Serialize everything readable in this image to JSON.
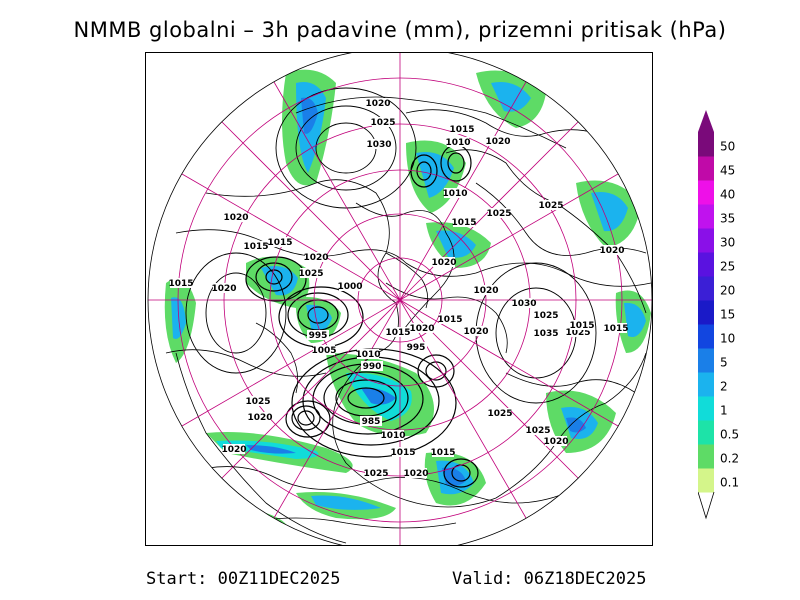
{
  "title": "NMMB globalni – 3h padavine (mm), prizemni pritisak (hPa)",
  "footer": {
    "start": "Start: 00Z11DEC2025",
    "valid": "Valid: 06Z18DEC2025"
  },
  "legend": {
    "levels": [
      {
        "label": "0.1",
        "color": "#d4f58a"
      },
      {
        "label": "0.2",
        "color": "#5edb66"
      },
      {
        "label": "0.5",
        "color": "#1de3a8"
      },
      {
        "label": "1",
        "color": "#11dcd9"
      },
      {
        "label": "2",
        "color": "#1bb3ee"
      },
      {
        "label": "5",
        "color": "#1a7fe8"
      },
      {
        "label": "10",
        "color": "#1246e0"
      },
      {
        "label": "15",
        "color": "#1a1ac8"
      },
      {
        "label": "20",
        "color": "#3b1fd6"
      },
      {
        "label": "25",
        "color": "#5a12e0"
      },
      {
        "label": "30",
        "color": "#8a10e8"
      },
      {
        "label": "35",
        "color": "#c012ee"
      },
      {
        "label": "40",
        "color": "#ee10e8"
      },
      {
        "label": "45",
        "color": "#c00aa8"
      },
      {
        "label": "50",
        "color": "#7a0a7a"
      }
    ]
  },
  "isobar_labels": [
    "1020",
    "1025",
    "1030",
    "1015",
    "1010",
    "1020",
    "1010",
    "1015",
    "1025",
    "1025",
    "1020",
    "1015",
    "1015",
    "1020",
    "1025",
    "1020",
    "1020",
    "1015",
    "1020",
    "1000",
    "995",
    "1005",
    "1010",
    "1015",
    "1020",
    "1015",
    "1020",
    "995",
    "990",
    "1030",
    "1035",
    "1025",
    "1015",
    "1015",
    "1025",
    "1020",
    "1025",
    "985",
    "1010",
    "1015",
    "1025",
    "1020",
    "1020",
    "1015",
    "1020",
    "1025",
    "1020",
    "1025"
  ],
  "colors": {
    "graticule": "#c0007a",
    "coast": "#000000",
    "isobar": "#000000"
  }
}
